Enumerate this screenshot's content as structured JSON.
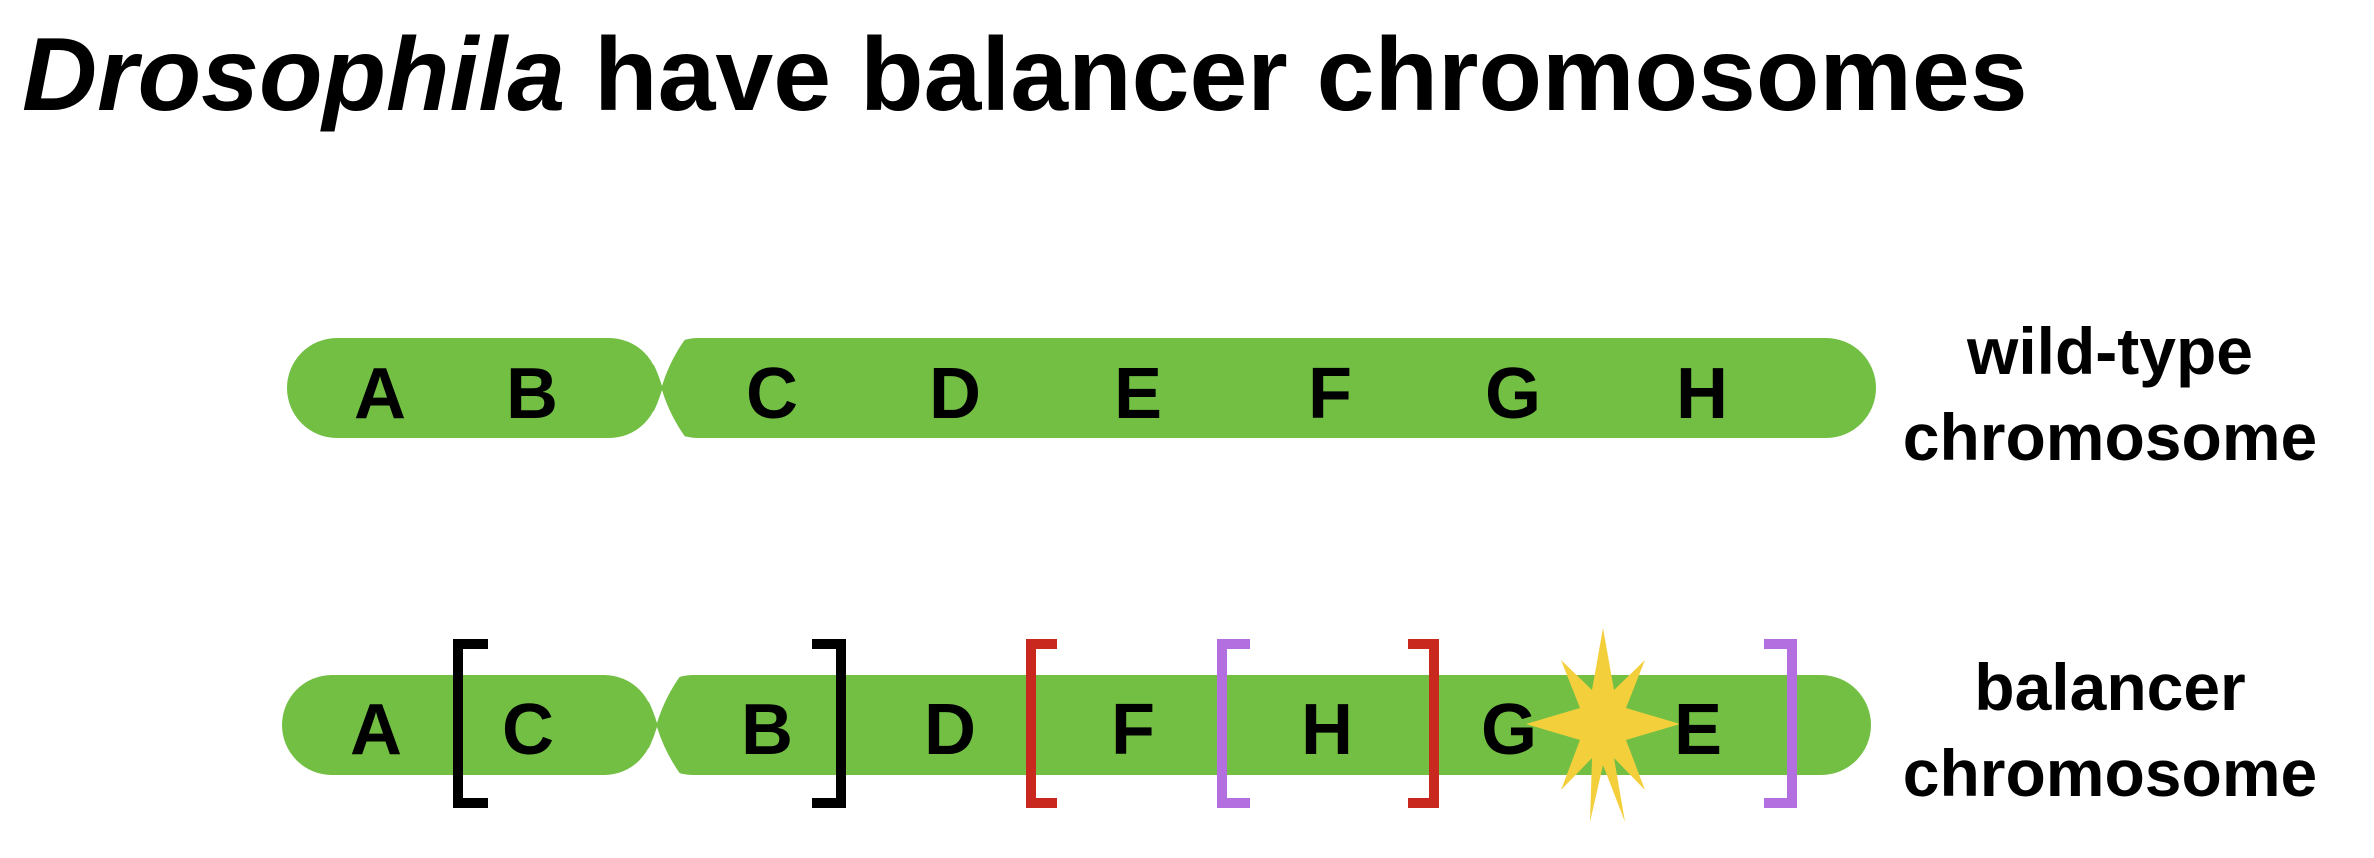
{
  "title": {
    "italic_part": "Drosophila",
    "rest": " have balancer chromosomes"
  },
  "colors": {
    "chromosome": "#72bf44",
    "bracket_black": "#000000",
    "bracket_red": "#c8281e",
    "bracket_purple": "#b36fe0",
    "breakpoint_star": "#f4cf3c",
    "text": "#000000"
  },
  "wild_type": {
    "genes": [
      "A",
      "B",
      "C",
      "D",
      "E",
      "F",
      "G",
      "H"
    ],
    "label_line1": "wild-type",
    "label_line2": "chromosome"
  },
  "balancer": {
    "genes": [
      "A",
      "C",
      "B",
      "D",
      "F",
      "H",
      "G",
      "E"
    ],
    "label_line1": "balancer",
    "label_line2": "chromosome",
    "brackets": [
      "black-left",
      "black-right",
      "red-left",
      "purple-left",
      "red-right",
      "purple-right"
    ],
    "breakpoint_icon": "star-burst-icon"
  }
}
